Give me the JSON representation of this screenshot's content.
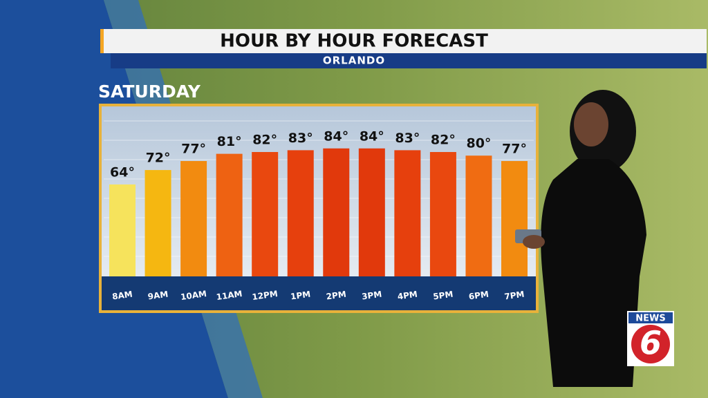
{
  "chart_data": {
    "type": "bar",
    "title": "HOUR BY HOUR FORECAST",
    "subtitle": "ORLANDO",
    "day": "SATURDAY",
    "categories": [
      "8AM",
      "9AM",
      "10AM",
      "11AM",
      "12PM",
      "1PM",
      "2PM",
      "3PM",
      "4PM",
      "5PM",
      "6PM",
      "7PM"
    ],
    "values": [
      64,
      72,
      77,
      81,
      82,
      83,
      84,
      84,
      83,
      82,
      80,
      77
    ],
    "value_labels": [
      "64°",
      "72°",
      "77°",
      "81°",
      "82°",
      "83°",
      "84°",
      "84°",
      "83°",
      "82°",
      "80°",
      "77°"
    ],
    "colors": [
      "#f6e35c",
      "#f5b711",
      "#f28b10",
      "#ee6212",
      "#e9480f",
      "#e6400d",
      "#e1390c",
      "#e1390c",
      "#e6400d",
      "#e9480f",
      "#f06c12",
      "#f28b10"
    ],
    "ylim": [
      13,
      105
    ]
  },
  "logo": {
    "text": "NEWS",
    "channel": "6"
  }
}
